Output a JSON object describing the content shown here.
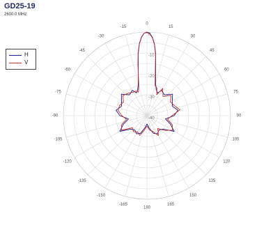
{
  "chart_data": {
    "type": "polar",
    "title": "GD25-19",
    "subtitle": "2600.0 MHz",
    "legend": {
      "placement": "top-left",
      "entries": [
        {
          "name": "H",
          "color": "#1a1a8c"
        },
        {
          "name": "V",
          "color": "#c8322a"
        }
      ]
    },
    "angle_ticks": [
      0,
      15,
      30,
      45,
      60,
      75,
      90,
      105,
      120,
      135,
      150,
      165,
      180,
      -165,
      -150,
      -135,
      -120,
      -105,
      -90,
      -75,
      -60,
      -45,
      -30,
      -15
    ],
    "angle_tick_labels": [
      "0",
      "15",
      "30",
      "45",
      "60",
      "75",
      "90",
      "105",
      "120",
      "135",
      "150",
      "165",
      "180",
      "-165",
      "-150",
      "-135",
      "-120",
      "-105",
      "-90",
      "-75",
      "-60",
      "-45",
      "-30",
      "-15"
    ],
    "radial_rings": [
      0,
      -5,
      -10,
      -15,
      -20,
      -25,
      -30,
      -35,
      -40
    ],
    "radial_labels": [
      "0",
      "-10",
      "-20",
      "-30",
      "-40"
    ],
    "rlim": [
      -40,
      0
    ],
    "grid": true,
    "series": [
      {
        "name": "H",
        "color": "#1a1a8c",
        "angles": [
          0,
          2,
          4,
          6,
          8,
          10,
          15,
          20,
          25,
          30,
          40,
          50,
          60,
          70,
          80,
          90,
          100,
          110,
          120,
          130,
          140,
          150,
          160,
          170,
          180,
          190,
          200,
          210,
          220,
          230,
          240,
          250,
          260,
          270,
          280,
          290,
          300,
          310,
          320,
          330,
          335,
          340,
          345,
          350,
          352,
          354,
          356,
          358
        ],
        "values": [
          0,
          -0.6,
          -2.4,
          -5.5,
          -10,
          -16,
          -24,
          -27,
          -28,
          -26,
          -27,
          -24,
          -26,
          -27,
          -25,
          -27,
          -31,
          -28,
          -25,
          -30,
          -31,
          -30,
          -31,
          -34,
          -36,
          -34,
          -31,
          -30,
          -31,
          -30,
          -25,
          -28,
          -31,
          -27,
          -25,
          -27,
          -26,
          -24,
          -27,
          -26,
          -28,
          -27,
          -24,
          -16,
          -10,
          -5.5,
          -2.4,
          -0.6
        ]
      },
      {
        "name": "V",
        "color": "#c8322a",
        "angles": [
          0,
          2,
          4,
          6,
          8,
          10,
          15,
          20,
          25,
          30,
          40,
          50,
          60,
          70,
          80,
          90,
          100,
          110,
          120,
          130,
          140,
          150,
          160,
          170,
          180,
          190,
          200,
          210,
          220,
          230,
          240,
          250,
          260,
          270,
          280,
          290,
          300,
          310,
          320,
          330,
          335,
          340,
          345,
          350,
          352,
          354,
          356,
          358
        ],
        "values": [
          -0.3,
          -0.9,
          -2.7,
          -5.8,
          -10.5,
          -17,
          -25,
          -26,
          -29,
          -25,
          -28,
          -25,
          -27,
          -26,
          -24,
          -28,
          -30,
          -27,
          -26,
          -29,
          -32,
          -29,
          -32,
          -33,
          -35,
          -33,
          -30,
          -31,
          -30,
          -31,
          -26,
          -27,
          -30,
          -28,
          -26,
          -26,
          -27,
          -25,
          -26,
          -27,
          -27,
          -28,
          -25,
          -15,
          -9.5,
          -5.2,
          -2.2,
          -0.5
        ]
      }
    ]
  }
}
